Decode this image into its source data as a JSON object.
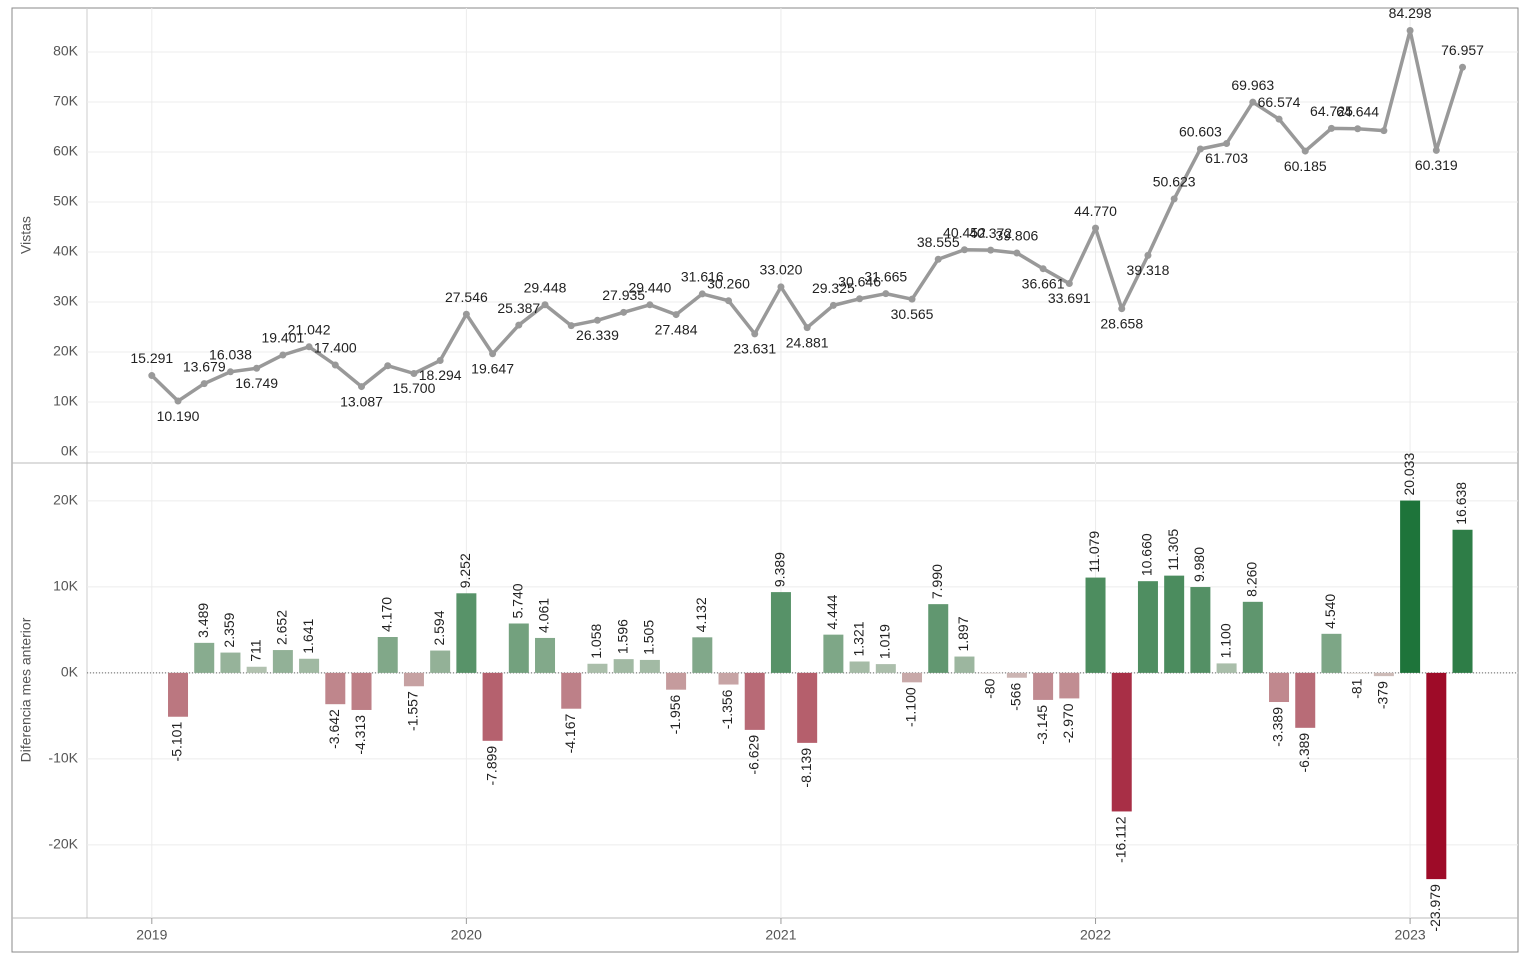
{
  "chart_data": [
    {
      "type": "line",
      "y_label": "Vistas",
      "color": "#999999",
      "x": [
        "2019-01",
        "2019-02",
        "2019-03",
        "2019-04",
        "2019-05",
        "2019-06",
        "2019-07",
        "2019-08",
        "2019-09",
        "2019-10",
        "2019-11",
        "2019-12",
        "2020-01",
        "2020-02",
        "2020-03",
        "2020-04",
        "2020-05",
        "2020-06",
        "2020-07",
        "2020-08",
        "2020-09",
        "2020-10",
        "2020-11",
        "2020-12",
        "2021-01",
        "2021-02",
        "2021-03",
        "2021-04",
        "2021-05",
        "2021-06",
        "2021-07",
        "2021-08",
        "2021-09",
        "2021-10",
        "2021-11",
        "2021-12",
        "2022-01",
        "2022-02",
        "2022-03",
        "2022-04",
        "2022-05",
        "2022-06",
        "2022-07",
        "2022-08",
        "2022-09",
        "2022-10",
        "2022-11",
        "2022-12",
        "2023-01",
        "2023-02",
        "2023-03"
      ],
      "values": [
        15291,
        10190,
        13679,
        16038,
        16749,
        19401,
        21042,
        17400,
        13087,
        17257,
        15700,
        18294,
        27546,
        19647,
        25387,
        29448,
        25281,
        26339,
        27935,
        29440,
        27484,
        31616,
        30260,
        23631,
        33020,
        24881,
        29325,
        30646,
        31665,
        30565,
        38555,
        40452,
        40372,
        39806,
        36661,
        33691,
        44770,
        28658,
        39318,
        50623,
        60603,
        61703,
        69963,
        66574,
        60185,
        64725,
        64644,
        64265,
        84298,
        60319,
        76957
      ],
      "value_labels": [
        "15.291",
        "10.190",
        "13.679",
        "16.038",
        "16.749",
        "19.401",
        "21.042",
        "17.400",
        "13.087",
        null,
        "15.700",
        "18.294",
        "27.546",
        "19.647",
        "25.387",
        "29.448",
        null,
        "26.339",
        "27.935",
        "29.440",
        "27.484",
        "31.616",
        "30.260",
        "23.631",
        "33.020",
        "24.881",
        "29.325",
        "30.646",
        "31.665",
        "30.565",
        "38.555",
        "40.452",
        "40.372",
        "39.806",
        "36.661",
        "33.691",
        "44.770",
        "28.658",
        "39.318",
        "50.623",
        "60.603",
        "61.703",
        "69.963",
        "66.574",
        "60.185",
        "64.725",
        "64.644",
        null,
        "84.298",
        "60.319",
        "76.957"
      ],
      "ylim": [
        -2200,
        88800
      ],
      "yticks": [
        {
          "value": 0,
          "label": "0K"
        },
        {
          "value": 10000,
          "label": "10K"
        },
        {
          "value": 20000,
          "label": "20K"
        },
        {
          "value": 30000,
          "label": "30K"
        },
        {
          "value": 40000,
          "label": "40K"
        },
        {
          "value": 50000,
          "label": "50K"
        },
        {
          "value": 60000,
          "label": "60K"
        },
        {
          "value": 70000,
          "label": "70K"
        },
        {
          "value": 80000,
          "label": "80K"
        }
      ],
      "grid": true
    },
    {
      "type": "bar",
      "y_label": "Diferencia mes anterior",
      "positive_color": "#0d6b2c",
      "negative_color": "#9e0b28",
      "mid_color": "#d4d4cc",
      "values": [
        null,
        -5101,
        3489,
        2359,
        711,
        2652,
        1641,
        -3642,
        -4313,
        4170,
        -1557,
        2594,
        9252,
        -7899,
        5740,
        4061,
        -4167,
        1058,
        1596,
        1505,
        -1956,
        4132,
        -1356,
        -6629,
        9389,
        -8139,
        4444,
        1321,
        1019,
        -1100,
        7990,
        1897,
        -80,
        -566,
        -3145,
        -2970,
        11079,
        -16112,
        10660,
        11305,
        9980,
        1100,
        8260,
        -3389,
        -6389,
        4540,
        -81,
        -379,
        20033,
        -23979,
        16638
      ],
      "value_labels": [
        null,
        "-5.101",
        "3.489",
        "2.359",
        "711",
        "2.652",
        "1.641",
        "-3.642",
        "-4.313",
        "4.170",
        "-1.557",
        "2.594",
        "9.252",
        "-7.899",
        "5.740",
        "4.061",
        "-4.167",
        "1.058",
        "1.596",
        "1.505",
        "-1.956",
        "4.132",
        "-1.356",
        "-6.629",
        "9.389",
        "-8.139",
        "4.444",
        "1.321",
        "1.019",
        "-1.100",
        "7.990",
        "1.897",
        "-80",
        "-566",
        "-3.145",
        "-2.970",
        "11.079",
        "-16.112",
        "10.660",
        "11.305",
        "9.980",
        "1.100",
        "8.260",
        "-3.389",
        "-6.389",
        "4.540",
        "-81",
        "-379",
        "20.033",
        "-23.979",
        "16.638"
      ],
      "ylim": [
        -28500,
        24400
      ],
      "yticks": [
        {
          "value": -20000,
          "label": "-20K"
        },
        {
          "value": -10000,
          "label": "-10K"
        },
        {
          "value": 0,
          "label": "0K"
        },
        {
          "value": 10000,
          "label": "10K"
        },
        {
          "value": 20000,
          "label": "20K"
        }
      ],
      "grid": true,
      "xlim": [
        2018.794,
        2023.343
      ],
      "xticks": [
        2019,
        2020,
        2021,
        2022,
        2023
      ]
    }
  ]
}
